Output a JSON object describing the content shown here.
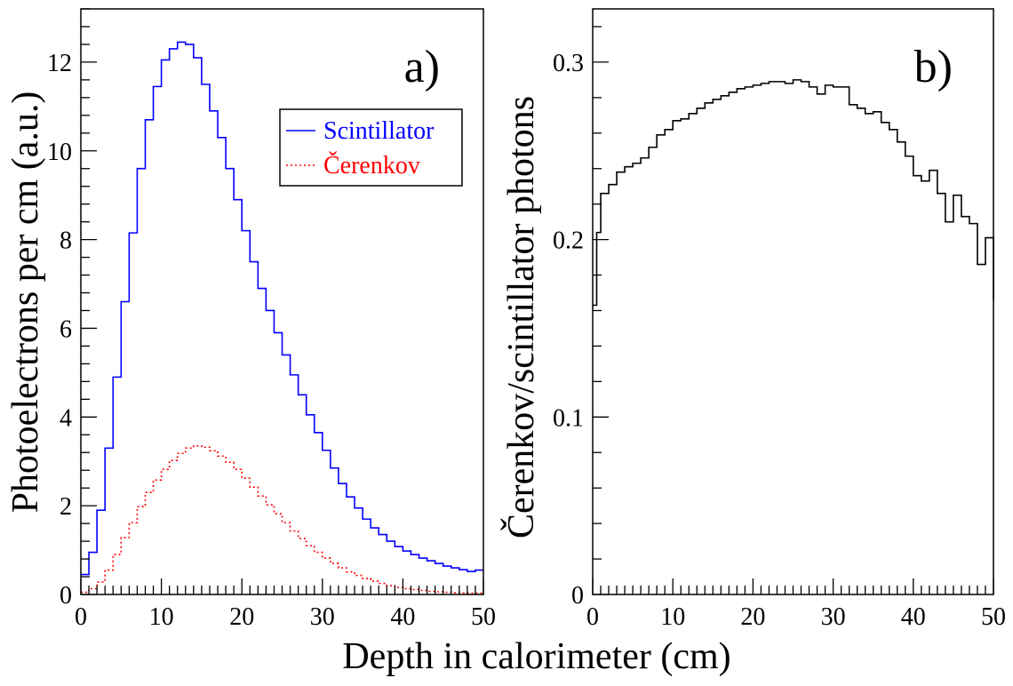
{
  "figure": {
    "xlabel": "Depth in calorimeter (cm)"
  },
  "chart_data": [
    {
      "type": "line",
      "step": true,
      "panel_label": "a)",
      "ylabel": "Photoelectrons per cm (a.u.)",
      "xlim": [
        0,
        50
      ],
      "ylim": [
        0,
        13.2
      ],
      "x_ticks": [
        0,
        10,
        20,
        30,
        40,
        50
      ],
      "y_ticks": [
        0,
        2,
        4,
        6,
        8,
        10,
        12
      ],
      "legend_position": "upper-right",
      "x_bin_edges": [
        0,
        1,
        2,
        3,
        4,
        5,
        6,
        7,
        8,
        9,
        10,
        11,
        12,
        13,
        14,
        15,
        16,
        17,
        18,
        19,
        20,
        21,
        22,
        23,
        24,
        25,
        26,
        27,
        28,
        29,
        30,
        31,
        32,
        33,
        34,
        35,
        36,
        37,
        38,
        39,
        40,
        41,
        42,
        43,
        44,
        45,
        46,
        47,
        48,
        49,
        50
      ],
      "series": [
        {
          "name": "Scintillator",
          "color": "#0000ff",
          "dash": "solid",
          "values": [
            0.45,
            0.95,
            1.9,
            3.3,
            4.9,
            6.6,
            8.15,
            9.6,
            10.7,
            11.45,
            12.05,
            12.3,
            12.45,
            12.4,
            12.1,
            11.5,
            10.9,
            10.3,
            9.6,
            8.9,
            8.2,
            7.5,
            6.9,
            6.4,
            5.9,
            5.4,
            4.95,
            4.5,
            4.05,
            3.65,
            3.25,
            2.85,
            2.5,
            2.2,
            1.95,
            1.7,
            1.5,
            1.35,
            1.2,
            1.08,
            0.98,
            0.9,
            0.82,
            0.76,
            0.7,
            0.64,
            0.6,
            0.56,
            0.52,
            0.55
          ]
        },
        {
          "name": "Čerenkov",
          "color": "#ff0000",
          "dash": "dotted",
          "values": [
            0.05,
            0.13,
            0.28,
            0.55,
            0.9,
            1.28,
            1.62,
            1.98,
            2.3,
            2.58,
            2.82,
            3.02,
            3.18,
            3.3,
            3.35,
            3.32,
            3.24,
            3.12,
            2.98,
            2.82,
            2.62,
            2.42,
            2.22,
            2.02,
            1.82,
            1.62,
            1.43,
            1.26,
            1.1,
            0.95,
            0.82,
            0.7,
            0.6,
            0.51,
            0.43,
            0.36,
            0.3,
            0.25,
            0.2,
            0.16,
            0.13,
            0.11,
            0.09,
            0.07,
            0.06,
            0.05,
            0.04,
            0.035,
            0.03,
            0.03
          ]
        }
      ]
    },
    {
      "type": "line",
      "step": true,
      "panel_label": "b)",
      "ylabel": "Čerenkov/scintillator photons",
      "xlim": [
        0,
        50
      ],
      "ylim": [
        0,
        0.33
      ],
      "x_ticks": [
        0,
        10,
        20,
        30,
        40,
        50
      ],
      "y_ticks": [
        0,
        0.1,
        0.2,
        0.3
      ],
      "y_tick_labels": [
        "0",
        "0.1",
        "0.2",
        "0.3"
      ],
      "x_bin_edges": [
        0,
        0.5,
        1,
        2,
        3,
        4,
        5,
        6,
        7,
        8,
        9,
        10,
        11,
        12,
        13,
        14,
        15,
        16,
        17,
        18,
        19,
        20,
        21,
        22,
        23,
        24,
        25,
        26,
        27,
        28,
        29,
        30,
        31,
        32,
        33,
        34,
        35,
        36,
        37,
        38,
        39,
        40,
        41,
        42,
        43,
        44,
        45,
        46,
        47,
        48,
        49,
        50
      ],
      "series": [
        {
          "name": "",
          "color": "#000000",
          "dash": "solid",
          "values": [
            0.163,
            0.204,
            0.226,
            0.231,
            0.238,
            0.241,
            0.243,
            0.246,
            0.252,
            0.259,
            0.262,
            0.267,
            0.268,
            0.271,
            0.274,
            0.277,
            0.279,
            0.281,
            0.283,
            0.285,
            0.286,
            0.287,
            0.288,
            0.289,
            0.289,
            0.288,
            0.29,
            0.289,
            0.286,
            0.282,
            0.287,
            0.286,
            0.286,
            0.276,
            0.274,
            0.271,
            0.272,
            0.266,
            0.262,
            0.255,
            0.247,
            0.236,
            0.233,
            0.239,
            0.226,
            0.21,
            0.225,
            0.213,
            0.209,
            0.186,
            0.201,
            0.166
          ]
        }
      ]
    }
  ]
}
